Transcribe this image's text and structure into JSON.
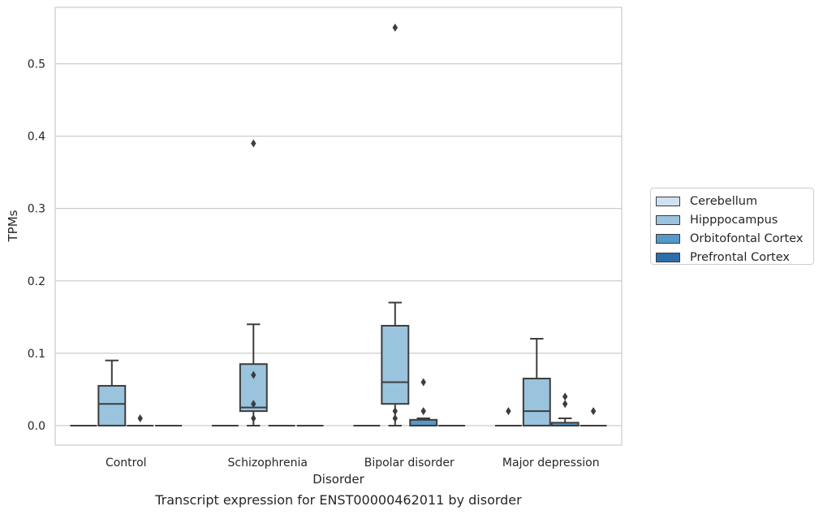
{
  "caption": "Transcript expression for ENST00000462011 by disorder",
  "chart_data": {
    "type": "box",
    "xlabel": "Disorder",
    "ylabel": "TPMs",
    "ylim": [
      -0.027,
      0.578
    ],
    "yticks": [
      "0.0",
      "0.1",
      "0.2",
      "0.3",
      "0.4",
      "0.5"
    ],
    "grid": true,
    "legend_position": "right",
    "categories": [
      "Control",
      "Schizophrenia",
      "Bipolar disorder",
      "Major depression"
    ],
    "series": [
      {
        "name": "Cerebellum",
        "color": "#d0e1f2",
        "boxes": [
          {
            "whislo": 0,
            "q1": 0,
            "med": 0,
            "q3": 0,
            "whishi": 0,
            "fliers": []
          },
          {
            "whislo": 0,
            "q1": 0,
            "med": 0,
            "q3": 0,
            "whishi": 0,
            "fliers": []
          },
          {
            "whislo": 0,
            "q1": 0,
            "med": 0,
            "q3": 0,
            "whishi": 0,
            "fliers": []
          },
          {
            "whislo": 0,
            "q1": 0,
            "med": 0,
            "q3": 0,
            "whishi": 0,
            "fliers": [
              0.02
            ]
          }
        ]
      },
      {
        "name": "Hipppocampus",
        "color": "#9ac4de",
        "boxes": [
          {
            "whislo": 0,
            "q1": 0,
            "med": 0.03,
            "q3": 0.055,
            "whishi": 0.09,
            "fliers": []
          },
          {
            "whislo": 0,
            "q1": 0.02,
            "med": 0.025,
            "q3": 0.085,
            "whishi": 0.14,
            "fliers": [
              0.39,
              0.07,
              0.03,
              0.01
            ]
          },
          {
            "whislo": 0,
            "q1": 0.03,
            "med": 0.06,
            "q3": 0.138,
            "whishi": 0.17,
            "fliers": [
              0.55,
              0.02,
              0.01
            ]
          },
          {
            "whislo": 0,
            "q1": 0,
            "med": 0.02,
            "q3": 0.065,
            "whishi": 0.12,
            "fliers": []
          }
        ]
      },
      {
        "name": "Orbitofontal Cortex",
        "color": "#5599c8",
        "boxes": [
          {
            "whislo": 0,
            "q1": 0,
            "med": 0,
            "q3": 0,
            "whishi": 0,
            "fliers": [
              0.01
            ]
          },
          {
            "whislo": 0,
            "q1": 0,
            "med": 0,
            "q3": 0,
            "whishi": 0,
            "fliers": []
          },
          {
            "whislo": 0,
            "q1": 0,
            "med": 0,
            "q3": 0.008,
            "whishi": 0.01,
            "fliers": [
              0.06,
              0.02
            ]
          },
          {
            "whislo": 0,
            "q1": 0,
            "med": 0,
            "q3": 0.004,
            "whishi": 0.01,
            "fliers": [
              0.04,
              0.03
            ]
          }
        ]
      },
      {
        "name": "Prefrontal Cortex",
        "color": "#2b6ea9",
        "boxes": [
          {
            "whislo": 0,
            "q1": 0,
            "med": 0,
            "q3": 0,
            "whishi": 0,
            "fliers": []
          },
          {
            "whislo": 0,
            "q1": 0,
            "med": 0,
            "q3": 0,
            "whishi": 0,
            "fliers": []
          },
          {
            "whislo": 0,
            "q1": 0,
            "med": 0,
            "q3": 0,
            "whishi": 0,
            "fliers": []
          },
          {
            "whislo": 0,
            "q1": 0,
            "med": 0,
            "q3": 0,
            "whishi": 0,
            "fliers": [
              0.02
            ]
          }
        ]
      }
    ]
  }
}
